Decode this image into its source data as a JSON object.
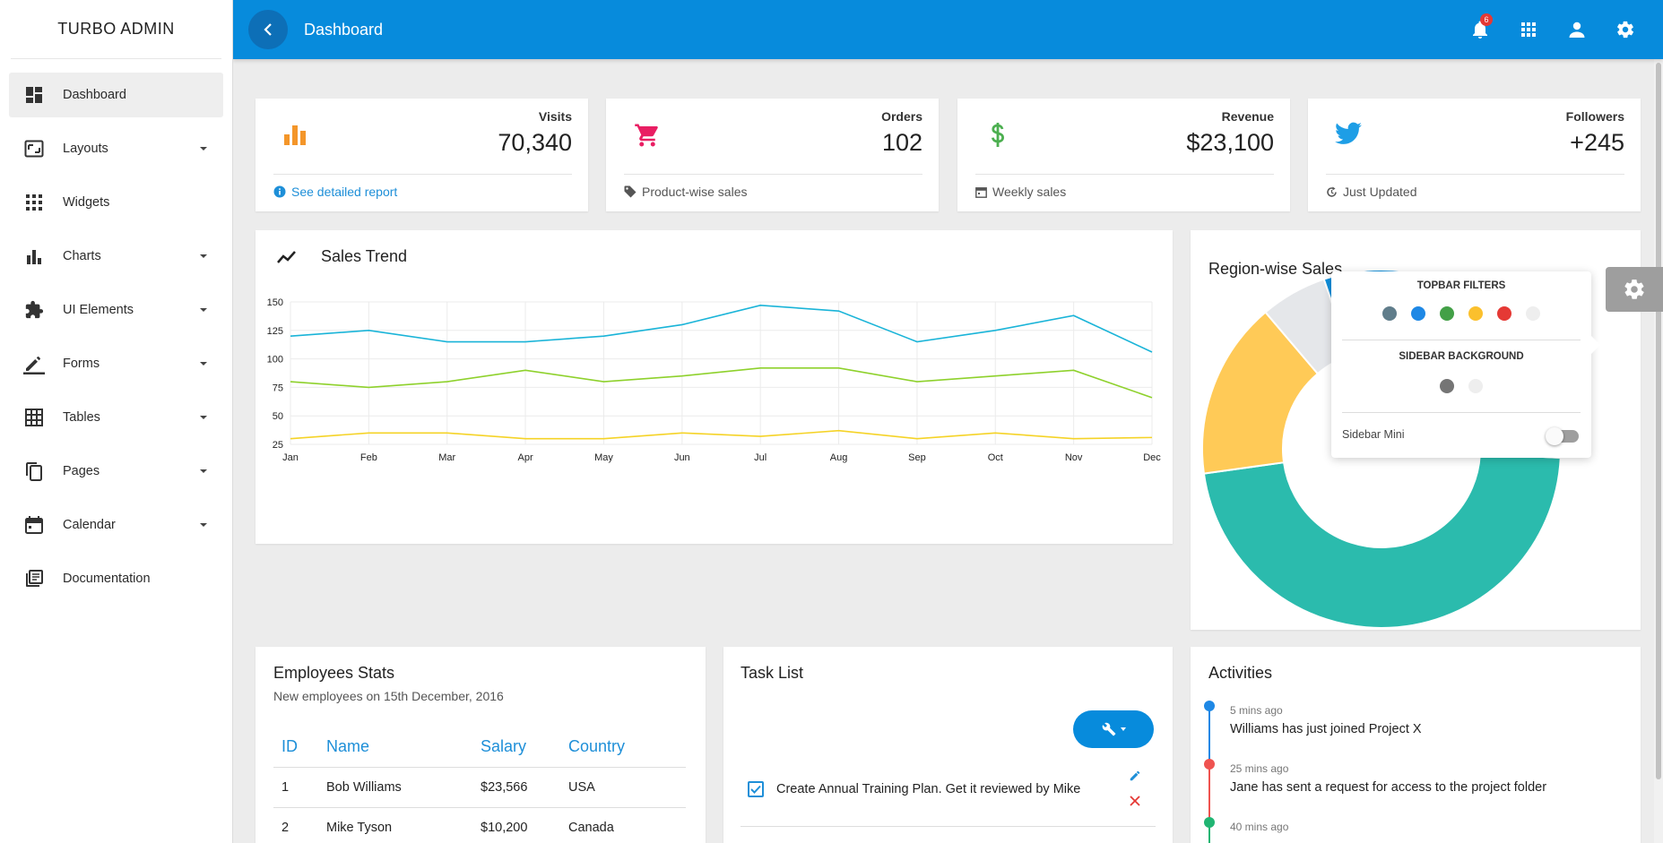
{
  "app": {
    "brand": "TURBO ADMIN",
    "page_title": "Dashboard",
    "notification_count": "6"
  },
  "sidebar": {
    "items": [
      {
        "label": "Dashboard",
        "icon": "dashboard-icon",
        "active": true
      },
      {
        "label": "Layouts",
        "icon": "layouts-icon",
        "caret": true
      },
      {
        "label": "Widgets",
        "icon": "widgets-icon"
      },
      {
        "label": "Charts",
        "icon": "charts-icon",
        "caret": true
      },
      {
        "label": "UI Elements",
        "icon": "puzzle-icon",
        "caret": true
      },
      {
        "label": "Forms",
        "icon": "pencil-icon",
        "caret": true
      },
      {
        "label": "Tables",
        "icon": "table-icon",
        "caret": true
      },
      {
        "label": "Pages",
        "icon": "pages-icon",
        "caret": true
      },
      {
        "label": "Calendar",
        "icon": "calendar-icon",
        "caret": true
      },
      {
        "label": "Documentation",
        "icon": "documentation-icon"
      }
    ]
  },
  "stats": [
    {
      "label": "Visits",
      "value": "70,340",
      "footer": "See detailed report",
      "icon": "bar-chart-icon",
      "color": "#f4962a",
      "footer_color": "#1e8fd8"
    },
    {
      "label": "Orders",
      "value": "102",
      "footer": "Product-wise sales",
      "icon": "cart-icon",
      "color": "#e91e63",
      "footer_color": "#555555"
    },
    {
      "label": "Revenue",
      "value": "$23,100",
      "footer": "Weekly sales",
      "icon": "dollar-icon",
      "color": "#4caf50",
      "footer_color": "#555555"
    },
    {
      "label": "Followers",
      "value": "+245",
      "footer": "Just Updated",
      "icon": "twitter-icon",
      "color": "#1e9ee6",
      "footer_color": "#555555"
    }
  ],
  "sales_trend": {
    "title": "Sales Trend"
  },
  "chart_data": [
    {
      "type": "line",
      "x": [
        "Jan",
        "Feb",
        "Mar",
        "Apr",
        "May",
        "Jun",
        "Jul",
        "Aug",
        "Sep",
        "Oct",
        "Nov",
        "Dec"
      ],
      "ylim": [
        25,
        150
      ],
      "yticks": [
        25,
        50,
        75,
        100,
        125,
        150
      ],
      "grid": true,
      "series": [
        {
          "color": "#1ab4d8",
          "values": [
            120,
            125,
            115,
            115,
            120,
            130,
            147,
            142,
            115,
            125,
            138,
            106
          ]
        },
        {
          "color": "#8ed12c",
          "values": [
            80,
            75,
            80,
            90,
            80,
            85,
            92,
            92,
            80,
            85,
            90,
            66
          ]
        },
        {
          "color": "#f5d327",
          "values": [
            30,
            35,
            35,
            30,
            30,
            35,
            32,
            37,
            30,
            35,
            30,
            31
          ]
        }
      ]
    },
    {
      "type": "pie",
      "title": "Region-wise Sales",
      "slices": [
        {
          "value": 47,
          "color": "#2bbbad"
        },
        {
          "value": 16,
          "color": "#ffca57"
        },
        {
          "value": 6,
          "color": "#e5e7ea"
        },
        {
          "value": 31,
          "color": "#0f8fdc"
        }
      ]
    }
  ],
  "settings_panel": {
    "topbar_heading": "TOPBAR FILTERS",
    "topbar_colors": [
      "#607d8b",
      "#1e88e5",
      "#43a047",
      "#fbc02d",
      "#e53935",
      "#eeeeee"
    ],
    "sidebar_heading": "SIDEBAR BACKGROUND",
    "sidebar_colors": [
      "#757575",
      "#eeeeee"
    ],
    "sidebar_mini_label": "Sidebar Mini",
    "sidebar_mini_on": false
  },
  "employees": {
    "title": "Employees Stats",
    "subtitle": "New employees on 15th December, 2016",
    "columns": [
      "ID",
      "Name",
      "Salary",
      "Country"
    ],
    "rows": [
      [
        "1",
        "Bob Williams",
        "$23,566",
        "USA"
      ],
      [
        "2",
        "Mike Tyson",
        "$10,200",
        "Canada"
      ]
    ]
  },
  "tasks": {
    "title": "Task List",
    "items": [
      {
        "text": "Create Annual Training Plan. Get it reviewed by Mike",
        "checked": true
      }
    ]
  },
  "activities": {
    "title": "Activities",
    "items": [
      {
        "time": "5 mins ago",
        "text": "Williams has just joined Project X",
        "color": "#1e88e5"
      },
      {
        "time": "25 mins ago",
        "text": "Jane has sent a request for access to the project folder",
        "color": "#ef5350"
      },
      {
        "time": "40 mins ago",
        "text": "",
        "color": "#21b573"
      }
    ]
  }
}
